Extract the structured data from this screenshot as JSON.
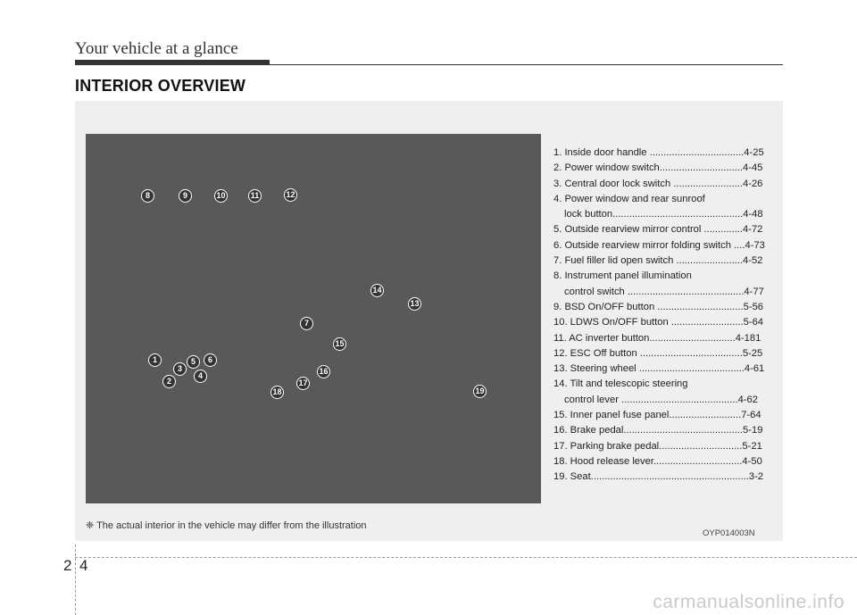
{
  "header": {
    "title": "Your vehicle at a glance"
  },
  "section": {
    "title": "INTERIOR OVERVIEW"
  },
  "badges": [
    "1",
    "2",
    "3",
    "4",
    "5",
    "6",
    "7",
    "8",
    "9",
    "10",
    "11",
    "12",
    "13",
    "14",
    "15",
    "16",
    "17",
    "18",
    "19"
  ],
  "legend": [
    {
      "lines": [
        "1. Inside door handle ..................................4-25"
      ]
    },
    {
      "lines": [
        "2. Power window switch..............................4-45"
      ]
    },
    {
      "lines": [
        "3. Central door lock switch .........................4-26"
      ]
    },
    {
      "lines": [
        "4. Power window and rear sunroof",
        "lock button...............................................4-48"
      ]
    },
    {
      "lines": [
        "5. Outside rearview mirror control ..............4-72"
      ]
    },
    {
      "lines": [
        "6. Outside rearview mirror folding switch ....4-73"
      ]
    },
    {
      "lines": [
        "7. Fuel filler lid open switch ........................4-52"
      ]
    },
    {
      "lines": [
        "8. Instrument panel illumination",
        "control switch ..........................................4-77"
      ]
    },
    {
      "lines": [
        "9. BSD On/OFF button ...............................5-56"
      ]
    },
    {
      "lines": [
        "10. LDWS On/OFF button ..........................5-64"
      ]
    },
    {
      "lines": [
        "11. AC inverter button...............................4-181"
      ]
    },
    {
      "lines": [
        "12. ESC Off button .....................................5-25"
      ]
    },
    {
      "lines": [
        "13. Steering wheel ......................................4-61"
      ]
    },
    {
      "lines": [
        "14. Tilt and telescopic steering",
        "control lever ..........................................4-62"
      ]
    },
    {
      "lines": [
        "15. Inner panel fuse panel..........................7-64"
      ]
    },
    {
      "lines": [
        "16. Brake pedal...........................................5-19"
      ]
    },
    {
      "lines": [
        "17. Parking brake pedal..............................5-21"
      ]
    },
    {
      "lines": [
        "18. Hood release lever................................4-50"
      ]
    },
    {
      "lines": [
        "19. Seat.........................................................3-2"
      ]
    }
  ],
  "note": "❈ The actual interior in the vehicle may differ from the illustration",
  "image_code": "OYP014003N",
  "page": {
    "chapter": "2",
    "number": "4"
  },
  "watermark": "carmanualsonline.info"
}
